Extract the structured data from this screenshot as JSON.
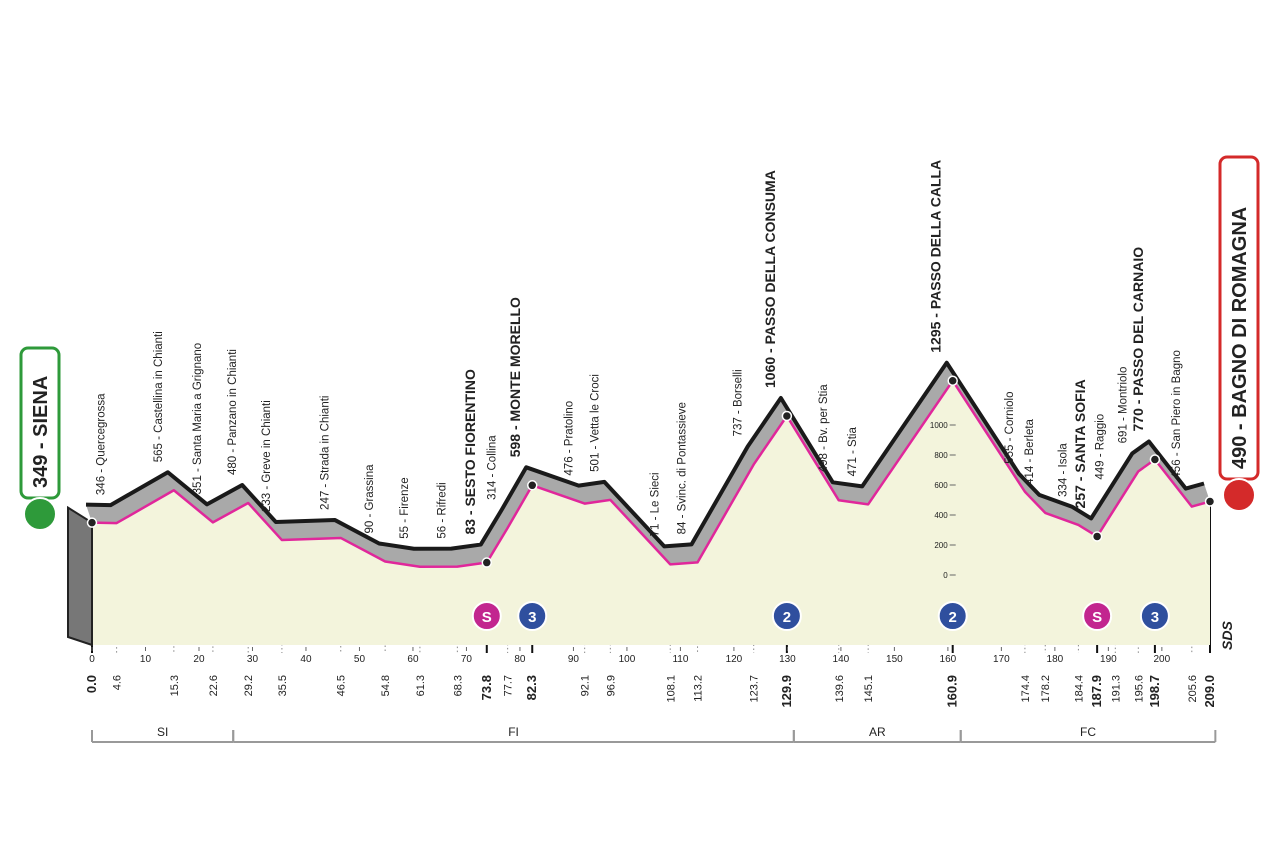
{
  "chart_data": {
    "type": "area",
    "x": [
      0,
      4.6,
      15.3,
      22.6,
      29.2,
      35.5,
      46.5,
      54.8,
      61.3,
      68.3,
      73.8,
      77.7,
      82.3,
      92.1,
      96.9,
      108.1,
      113.2,
      123.7,
      129.9,
      139.6,
      145.1,
      160.9,
      174.4,
      178.2,
      184.4,
      187.9,
      191.3,
      195.6,
      198.7,
      205.6,
      209
    ],
    "x_value_labels": [
      "0.0",
      "4.6",
      "15.3",
      "22.6",
      "29.2",
      "35.5",
      "46.5",
      "54.8",
      "61.3",
      "68.3",
      "73.8",
      "77.7",
      "82.3",
      "92.1",
      "96.9",
      "108.1",
      "113.2",
      "123.7",
      "129.9",
      "139.6",
      "145.1",
      "160.9",
      "174.4",
      "178.2",
      "184.4",
      "187.9",
      "191.3",
      "195.6",
      "198.7",
      "205.6",
      "209.0"
    ],
    "values": [
      349,
      346,
      565,
      351,
      480,
      233,
      247,
      90,
      55,
      56,
      83,
      314,
      598,
      476,
      501,
      71,
      84,
      737,
      1060,
      498,
      471,
      1295,
      555,
      414,
      334,
      257,
      449,
      691,
      770,
      456,
      490
    ],
    "labels": [
      "349 - SIENA",
      "346 - Quercegrossa",
      "565 - Castellina in Chianti",
      "351 - Santa Maria a Grignano",
      "480 - Panzano in Chianti",
      "233 - Greve in Chianti",
      "247 - Strada in Chianti",
      "90 - Grassina",
      "55 - Firenze",
      "56 - Rifredi",
      "83 - SESTO FIORENTINO",
      "314 - Collina",
      "598 - MONTE MORELLO",
      "476 - Pratolino",
      "501 - Vetta le Croci",
      "71 - Le Sieci",
      "84 - Svinc. di Pontassieve",
      "737 - Borselli",
      "1060 - PASSO DELLA CONSUMA",
      "498 - Bv. per Stia",
      "471 - Stia",
      "1295 - PASSO DELLA CALLA",
      "555 - Corniolo",
      "414 - Berleta",
      "334 - Isola",
      "257 - SANTA SOFIA",
      "449 - Raggio",
      "691 - Montriolo",
      "770 - PASSO DEL CARNAIO",
      "456 - San Piero in Bagno",
      "490 - BAGNO DI ROMAGNA"
    ],
    "bold_points": [
      0,
      10,
      12,
      18,
      21,
      25,
      28,
      30
    ],
    "color": "#e0279b",
    "xlim": [
      0,
      209
    ],
    "xticks": [
      0,
      10,
      20,
      30,
      40,
      50,
      60,
      70,
      80,
      90,
      100,
      110,
      120,
      130,
      140,
      150,
      160,
      170,
      180,
      190,
      200
    ],
    "ylim": [
      0,
      1400
    ],
    "yticks": [
      0,
      200,
      400,
      600,
      800,
      1000
    ],
    "climbs": [
      {
        "km": 73.8,
        "symbol": "S",
        "color": "#c2268f"
      },
      {
        "km": 82.3,
        "symbol": "3",
        "color": "#2f4f9e"
      },
      {
        "km": 129.9,
        "symbol": "2",
        "color": "#2f4f9e"
      },
      {
        "km": 160.9,
        "symbol": "2",
        "color": "#2f4f9e"
      },
      {
        "km": 187.9,
        "symbol": "S",
        "color": "#c2268f"
      },
      {
        "km": 198.7,
        "symbol": "3",
        "color": "#2f4f9e"
      }
    ],
    "regions": [
      {
        "name": "SI",
        "start": 0,
        "end": 26.4
      },
      {
        "name": "FI",
        "start": 26.4,
        "end": 131.2
      },
      {
        "name": "AR",
        "start": 131.2,
        "end": 162.4
      },
      {
        "name": "FC",
        "start": 162.4,
        "end": 210
      }
    ],
    "logo": "SDS"
  }
}
